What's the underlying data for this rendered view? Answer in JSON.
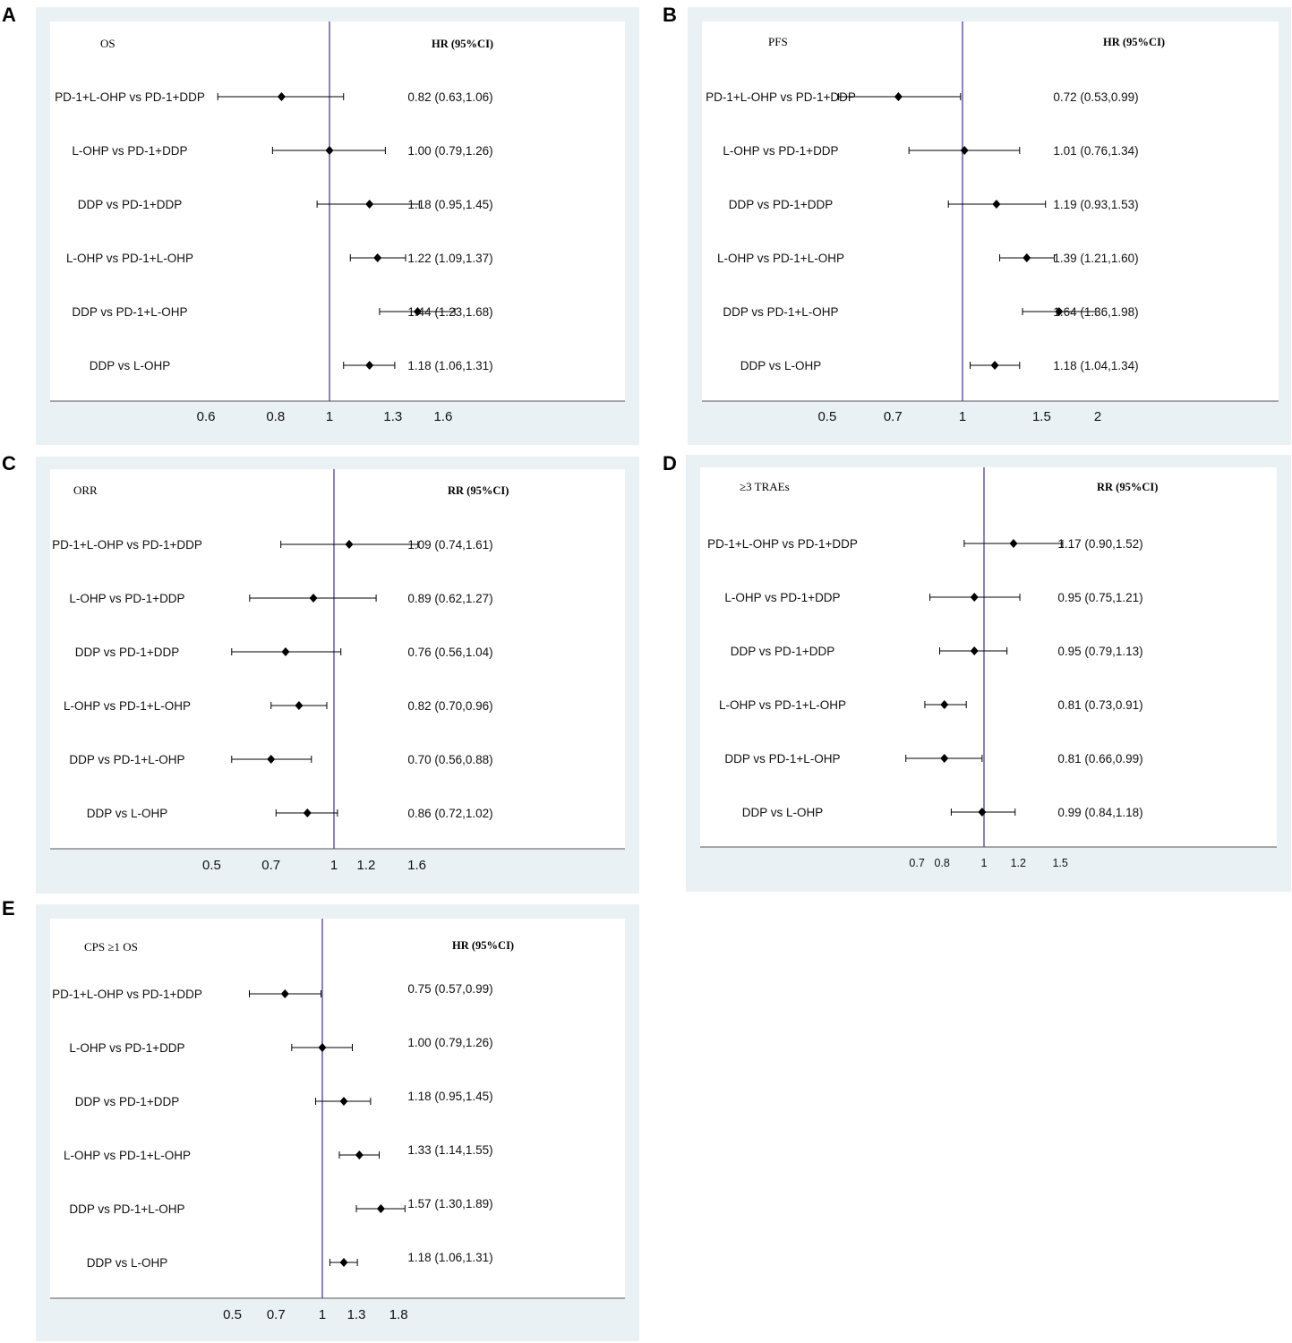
{
  "chart_data": [
    {
      "panel": "A",
      "type": "forest",
      "title": "OS",
      "stat_header": "HR (95%CI)",
      "xscale": "log",
      "xref": 1,
      "xticks": [
        0.6,
        0.8,
        1,
        1.3,
        1.6
      ],
      "rows": [
        {
          "label": "PD-1+L-OHP vs PD-1+DDP",
          "est": 0.82,
          "lo": 0.63,
          "hi": 1.06,
          "text": "0.82 (0.63,1.06)"
        },
        {
          "label": "L-OHP vs PD-1+DDP",
          "est": 1.0,
          "lo": 0.79,
          "hi": 1.26,
          "text": "1.00 (0.79,1.26)"
        },
        {
          "label": "DDP vs PD-1+DDP",
          "est": 1.18,
          "lo": 0.95,
          "hi": 1.45,
          "text": "1.18 (0.95,1.45)"
        },
        {
          "label": "L-OHP vs PD-1+L-OHP",
          "est": 1.22,
          "lo": 1.09,
          "hi": 1.37,
          "text": "1.22 (1.09,1.37)"
        },
        {
          "label": "DDP vs PD-1+L-OHP",
          "est": 1.44,
          "lo": 1.23,
          "hi": 1.68,
          "text": "1.44 (1.23,1.68)"
        },
        {
          "label": "DDP vs L-OHP",
          "est": 1.18,
          "lo": 1.06,
          "hi": 1.31,
          "text": "1.18 (1.06,1.31)"
        }
      ]
    },
    {
      "panel": "B",
      "type": "forest",
      "title": "PFS",
      "stat_header": "HR (95%CI)",
      "xscale": "log",
      "xref": 1,
      "xticks": [
        0.5,
        0.7,
        1,
        1.5,
        2
      ],
      "rows": [
        {
          "label": "PD-1+L-OHP vs PD-1+DDP",
          "est": 0.72,
          "lo": 0.53,
          "hi": 0.99,
          "text": "0.72 (0.53,0.99)"
        },
        {
          "label": "L-OHP vs PD-1+DDP",
          "est": 1.01,
          "lo": 0.76,
          "hi": 1.34,
          "text": "1.01 (0.76,1.34)"
        },
        {
          "label": "DDP vs PD-1+DDP",
          "est": 1.19,
          "lo": 0.93,
          "hi": 1.53,
          "text": "1.19 (0.93,1.53)"
        },
        {
          "label": "L-OHP vs PD-1+L-OHP",
          "est": 1.39,
          "lo": 1.21,
          "hi": 1.6,
          "text": "1.39 (1.21,1.60)"
        },
        {
          "label": "DDP vs PD-1+L-OHP",
          "est": 1.64,
          "lo": 1.36,
          "hi": 1.98,
          "text": "1.64 (1.36,1.98)"
        },
        {
          "label": "DDP vs L-OHP",
          "est": 1.18,
          "lo": 1.04,
          "hi": 1.34,
          "text": "1.18 (1.04,1.34)"
        }
      ]
    },
    {
      "panel": "C",
      "type": "forest",
      "title": "ORR",
      "stat_header": "RR (95%CI)",
      "xscale": "log",
      "xref": 1,
      "xticks": [
        0.5,
        0.7,
        1,
        1.2,
        1.6
      ],
      "rows": [
        {
          "label": "PD-1+L-OHP vs PD-1+DDP",
          "est": 1.09,
          "lo": 0.74,
          "hi": 1.61,
          "text": "1.09 (0.74,1.61)"
        },
        {
          "label": "L-OHP vs PD-1+DDP",
          "est": 0.89,
          "lo": 0.62,
          "hi": 1.27,
          "text": "0.89 (0.62,1.27)"
        },
        {
          "label": "DDP vs PD-1+DDP",
          "est": 0.76,
          "lo": 0.56,
          "hi": 1.04,
          "text": "0.76 (0.56,1.04)"
        },
        {
          "label": "L-OHP vs PD-1+L-OHP",
          "est": 0.82,
          "lo": 0.7,
          "hi": 0.96,
          "text": "0.82 (0.70,0.96)"
        },
        {
          "label": "DDP vs PD-1+L-OHP",
          "est": 0.7,
          "lo": 0.56,
          "hi": 0.88,
          "text": "0.70 (0.56,0.88)"
        },
        {
          "label": "DDP vs L-OHP",
          "est": 0.86,
          "lo": 0.72,
          "hi": 1.02,
          "text": "0.86 (0.72,1.02)"
        }
      ]
    },
    {
      "panel": "D",
      "type": "forest",
      "title": "≥3 TRAEs",
      "stat_header": "RR (95%CI)",
      "xscale": "log",
      "xref": 1,
      "xticks": [
        0.7,
        0.8,
        1,
        1.2,
        1.5
      ],
      "rows": [
        {
          "label": "PD-1+L-OHP vs PD-1+DDP",
          "est": 1.17,
          "lo": 0.9,
          "hi": 1.52,
          "text": "1.17 (0.90,1.52)"
        },
        {
          "label": "L-OHP vs PD-1+DDP",
          "est": 0.95,
          "lo": 0.75,
          "hi": 1.21,
          "text": "0.95 (0.75,1.21)"
        },
        {
          "label": "DDP vs PD-1+DDP",
          "est": 0.95,
          "lo": 0.79,
          "hi": 1.13,
          "text": "0.95 (0.79,1.13)"
        },
        {
          "label": "L-OHP vs PD-1+L-OHP",
          "est": 0.81,
          "lo": 0.73,
          "hi": 0.91,
          "text": "0.81 (0.73,0.91)"
        },
        {
          "label": "DDP vs PD-1+L-OHP",
          "est": 0.81,
          "lo": 0.66,
          "hi": 0.99,
          "text": "0.81 (0.66,0.99)"
        },
        {
          "label": "DDP vs L-OHP",
          "est": 0.99,
          "lo": 0.84,
          "hi": 1.18,
          "text": "0.99 (0.84,1.18)"
        }
      ]
    },
    {
      "panel": "E",
      "type": "forest",
      "title": "CPS ≥1 OS",
      "stat_header": "HR (95%CI)",
      "xscale": "log",
      "xref": 1,
      "xticks": [
        0.5,
        0.7,
        1,
        1.3,
        1.8
      ],
      "rows": [
        {
          "label": "PD-1+L-OHP vs PD-1+DDP",
          "est": 0.75,
          "lo": 0.57,
          "hi": 0.99,
          "text": "0.75 (0.57,0.99)"
        },
        {
          "label": "L-OHP vs PD-1+DDP",
          "est": 1.0,
          "lo": 0.79,
          "hi": 1.26,
          "text": "1.00 (0.79,1.26)"
        },
        {
          "label": "DDP vs PD-1+DDP",
          "est": 1.18,
          "lo": 0.95,
          "hi": 1.45,
          "text": "1.18 (0.95,1.45)"
        },
        {
          "label": "L-OHP vs PD-1+L-OHP",
          "est": 1.33,
          "lo": 1.14,
          "hi": 1.55,
          "text": "1.33 (1.14,1.55)"
        },
        {
          "label": "DDP vs PD-1+L-OHP",
          "est": 1.57,
          "lo": 1.3,
          "hi": 1.89,
          "text": "1.57 (1.30,1.89)"
        },
        {
          "label": "DDP vs L-OHP",
          "est": 1.18,
          "lo": 1.06,
          "hi": 1.31,
          "text": "1.18 (1.06,1.31)"
        }
      ]
    }
  ],
  "colors": {
    "background": "#eaf1f5",
    "plot": "#ffffff",
    "reference_line": "#4b3fa8",
    "marks": "#000000"
  }
}
